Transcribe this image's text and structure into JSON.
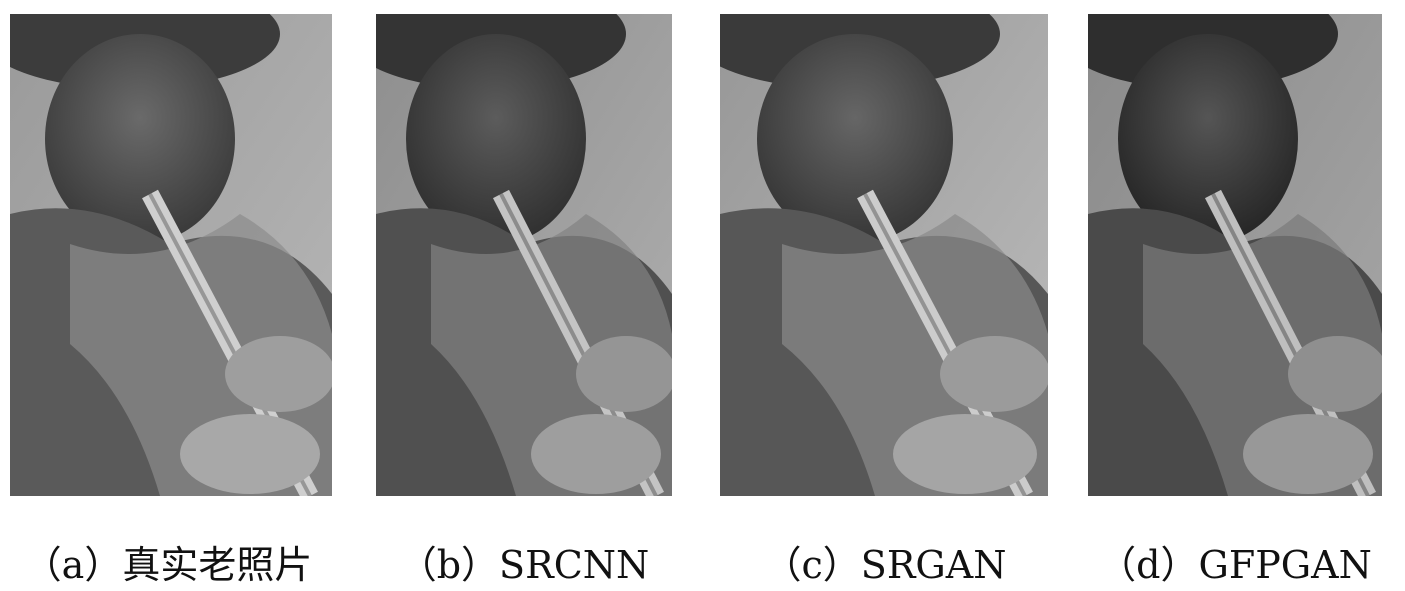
{
  "panels": [
    {
      "id": "a",
      "caption": "（a）真实老照片",
      "tone": "#8a8a8a"
    },
    {
      "id": "b",
      "caption": "（b）SRCNN",
      "tone": "#7a7a7a"
    },
    {
      "id": "c",
      "caption": "（c）SRGAN",
      "tone": "#858585"
    },
    {
      "id": "d",
      "caption": "（d）GFPGAN",
      "tone": "#6e6e6e"
    }
  ]
}
